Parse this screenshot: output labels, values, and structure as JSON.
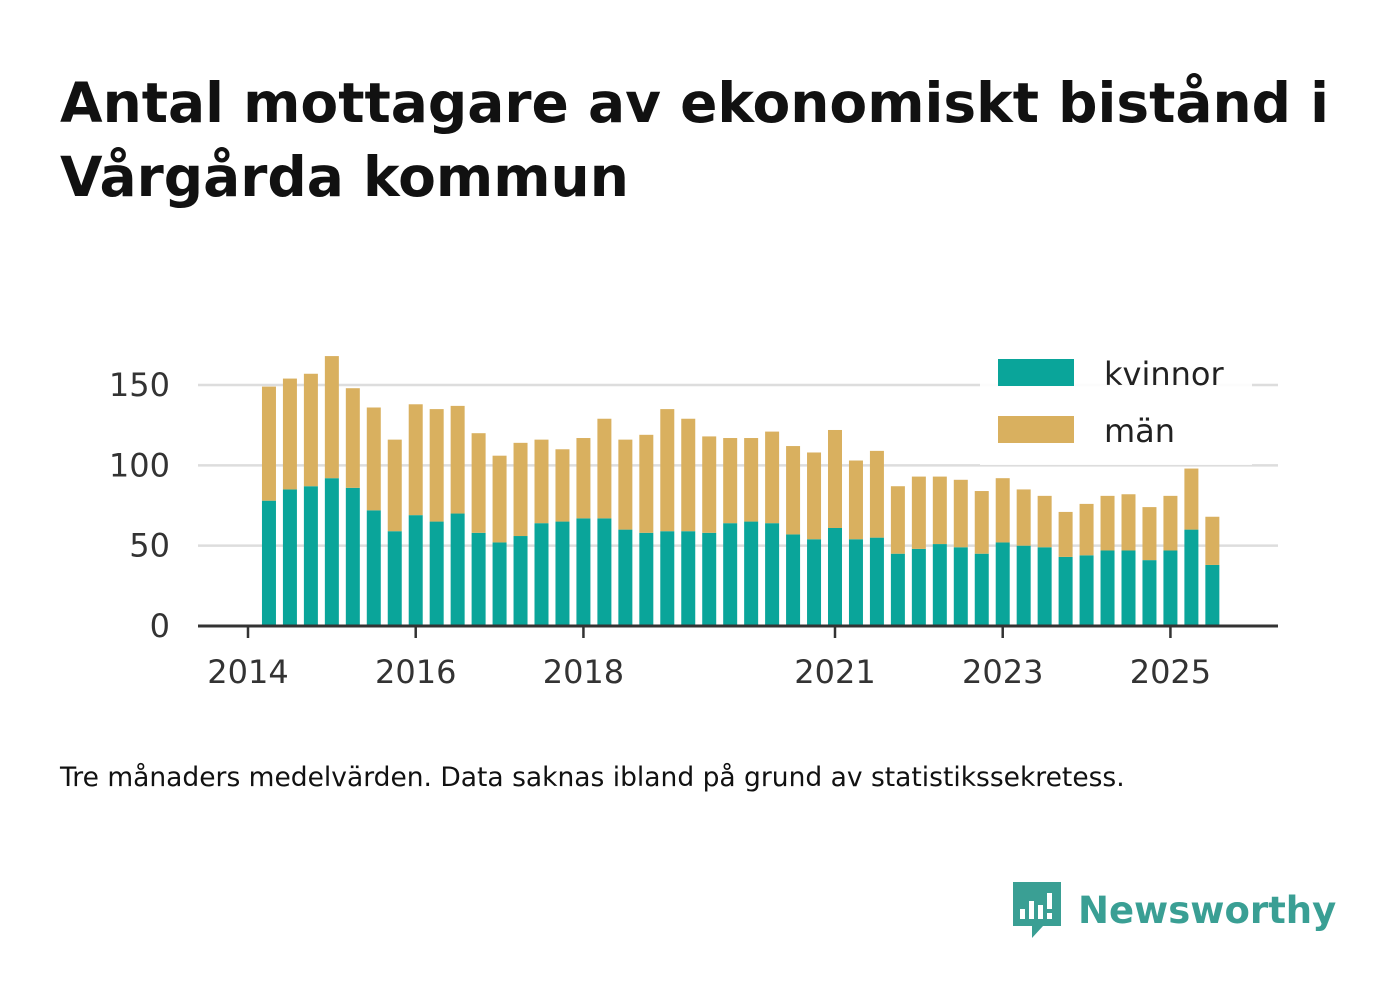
{
  "title": "Antal mottagare av ekonomiskt bistånd i Vårgårda kommun",
  "footnote": "Tre månaders medelvärden. Data saknas ibland på grund av statistikssekretess.",
  "brand": {
    "name": "Newsworthy",
    "icon": "newsworthy-logo-icon"
  },
  "colors": {
    "kvinnor": "#0aa59a",
    "man": "#d9b05f",
    "grid": "#dddddd",
    "axis": "#333333"
  },
  "chart_data": {
    "type": "bar",
    "stacked": true,
    "title": "Antal mottagare av ekonomiskt bistånd i Vårgårda kommun",
    "xlabel": "",
    "ylabel": "",
    "ylim": [
      0,
      170
    ],
    "yticks": [
      0,
      50,
      100,
      150
    ],
    "xticks": [
      {
        "label": "2014",
        "x": 2014.0
      },
      {
        "label": "2016",
        "x": 2016.0
      },
      {
        "label": "2018",
        "x": 2018.0
      },
      {
        "label": "2021",
        "x": 2021.0
      },
      {
        "label": "2023",
        "x": 2023.0
      },
      {
        "label": "2025",
        "x": 2025.0
      }
    ],
    "grid": true,
    "legend": {
      "position": "top-right",
      "entries": [
        "kvinnor",
        "män"
      ]
    },
    "x": [
      2014.25,
      2014.5,
      2014.75,
      2015.0,
      2015.25,
      2015.5,
      2015.75,
      2016.0,
      2016.25,
      2016.5,
      2016.75,
      2017.0,
      2017.25,
      2017.5,
      2017.75,
      2018.0,
      2018.25,
      2018.5,
      2018.75,
      2019.0,
      2019.25,
      2019.5,
      2019.75,
      2020.0,
      2020.25,
      2020.5,
      2020.75,
      2021.0,
      2021.25,
      2021.5,
      2021.75,
      2022.0,
      2022.25,
      2022.5,
      2022.75,
      2023.0,
      2023.25,
      2023.5,
      2023.75,
      2024.0,
      2024.25,
      2024.5,
      2024.75,
      2025.0,
      2025.25,
      2025.5
    ],
    "series": [
      {
        "name": "kvinnor",
        "values": [
          78,
          85,
          87,
          92,
          86,
          72,
          59,
          69,
          65,
          70,
          58,
          52,
          56,
          64,
          65,
          67,
          67,
          60,
          58,
          59,
          59,
          58,
          64,
          65,
          64,
          57,
          54,
          61,
          54,
          55,
          45,
          48,
          51,
          49,
          45,
          52,
          50,
          49,
          43,
          44,
          47,
          47,
          41,
          47,
          60,
          38
        ]
      },
      {
        "name": "män",
        "values": [
          71,
          69,
          70,
          76,
          62,
          64,
          57,
          69,
          70,
          67,
          62,
          54,
          58,
          52,
          45,
          50,
          62,
          56,
          61,
          76,
          70,
          60,
          53,
          52,
          57,
          55,
          54,
          61,
          49,
          54,
          42,
          45,
          42,
          42,
          39,
          40,
          35,
          32,
          28,
          32,
          34,
          35,
          33,
          34,
          38,
          30
        ]
      }
    ]
  }
}
